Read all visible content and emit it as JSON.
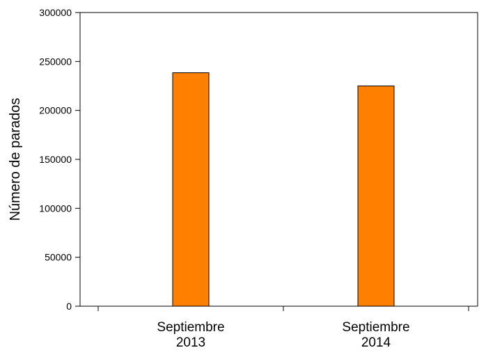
{
  "chart_data": {
    "type": "bar",
    "title": "",
    "xlabel": "",
    "ylabel": "Número de parados",
    "ylim": [
      0,
      300000
    ],
    "yticks": [
      0,
      50000,
      100000,
      150000,
      200000,
      250000,
      300000
    ],
    "categories": [
      [
        "Septiembre",
        "2013"
      ],
      [
        "Septiembre",
        "2014"
      ]
    ],
    "series": [
      {
        "values": [
          238500,
          225000
        ]
      }
    ],
    "bar_color": "#ff7f00",
    "bar_stroke": "#000000",
    "grid": false,
    "legend": "none"
  }
}
